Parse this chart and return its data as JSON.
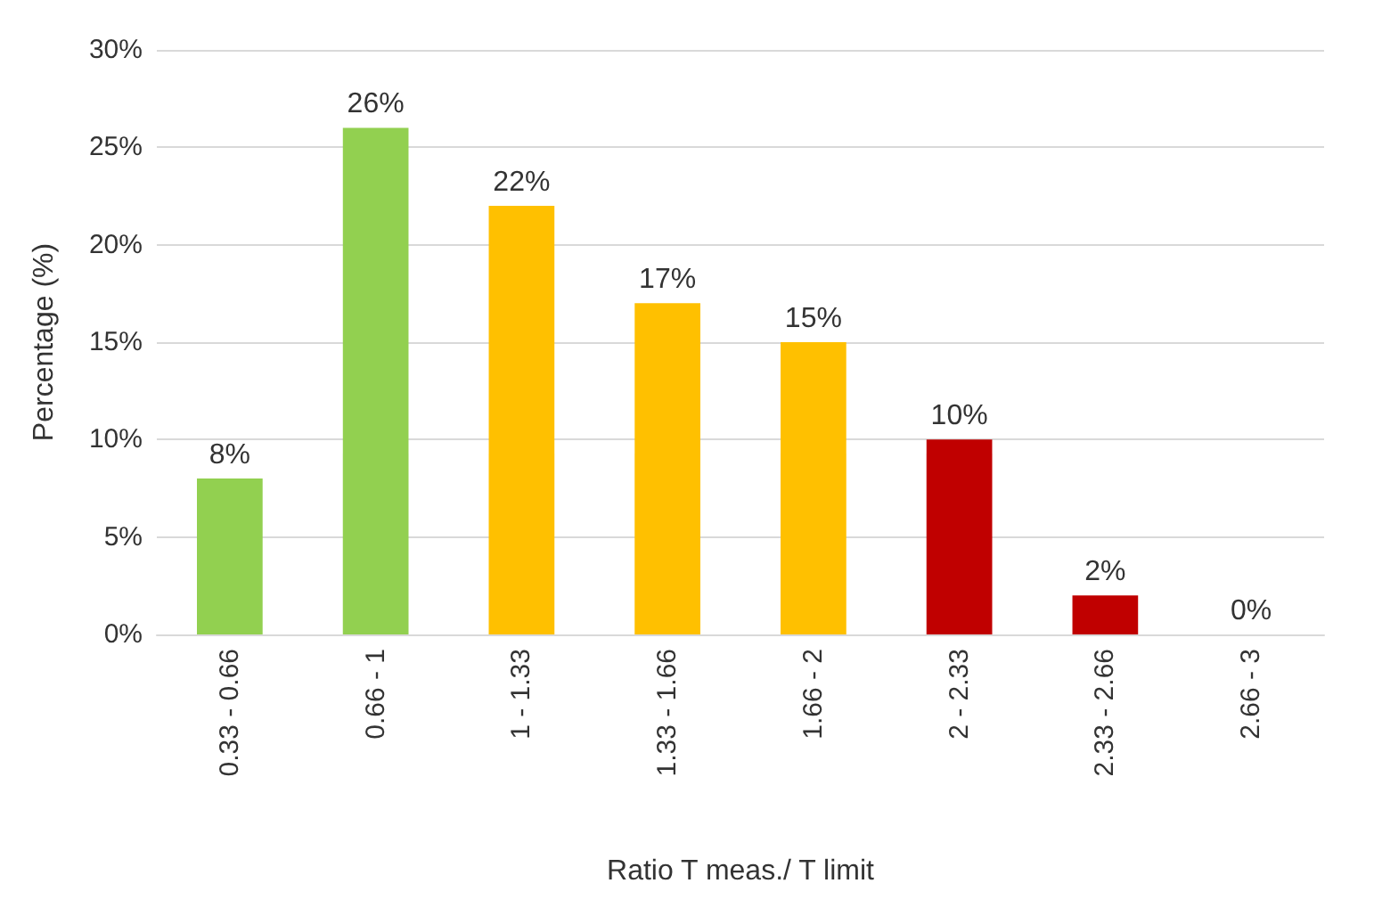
{
  "chart_data": {
    "type": "bar",
    "xlabel": "Ratio T meas./ T limit",
    "ylabel": "Percentage (%)",
    "categories": [
      "0.33 - 0.66",
      "0.66 - 1",
      "1 - 1.33",
      "1.33 - 1.66",
      "1.66 - 2",
      "2 - 2.33",
      "2.33 - 2.66",
      "2.66 - 3"
    ],
    "values": [
      8,
      26,
      22,
      17,
      15,
      10,
      2,
      0
    ],
    "value_labels": [
      "8%",
      "26%",
      "22%",
      "17%",
      "15%",
      "10%",
      "2%",
      "0%"
    ],
    "colors": [
      "#92d050",
      "#92d050",
      "#ffc000",
      "#ffc000",
      "#ffc000",
      "#c00000",
      "#c00000",
      "#c00000"
    ],
    "ylim": [
      0,
      30
    ],
    "yticks": [
      {
        "value": 0,
        "label": "0%"
      },
      {
        "value": 5,
        "label": "5%"
      },
      {
        "value": 10,
        "label": "10%"
      },
      {
        "value": 15,
        "label": "15%"
      },
      {
        "value": 20,
        "label": "20%"
      },
      {
        "value": 25,
        "label": "25%"
      },
      {
        "value": 30,
        "label": "30%"
      }
    ],
    "grid": "y"
  }
}
